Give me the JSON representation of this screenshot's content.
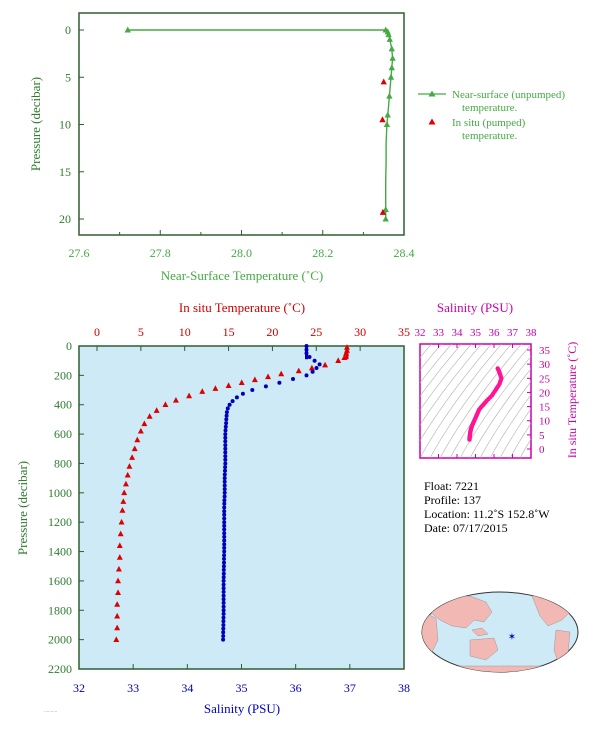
{
  "chart_data": [
    {
      "type": "line",
      "xlabel": "Near-Surface Temperature (˚C)",
      "ylabel": "Pressure (decibar)",
      "xlim": [
        27.6,
        28.4
      ],
      "ylim": [
        0,
        22
      ],
      "x_ticks": [
        "27.6",
        "27.8",
        "28.0",
        "28.2",
        "28.4"
      ],
      "y_ticks": [
        "0",
        "5",
        "10",
        "15",
        "20"
      ],
      "legend_placement": "right",
      "series": [
        {
          "name": "Near-surface (unpumped) temperature.",
          "color": "#44aa44",
          "marker": "triangle",
          "points": [
            [
              27.72,
              0
            ],
            [
              28.355,
              0
            ],
            [
              28.36,
              0.2
            ],
            [
              28.362,
              0.5
            ],
            [
              28.365,
              1
            ],
            [
              28.37,
              2
            ],
            [
              28.372,
              3
            ],
            [
              28.37,
              4
            ],
            [
              28.368,
              5
            ],
            [
              28.366,
              6
            ],
            [
              28.364,
              7
            ],
            [
              28.362,
              8
            ],
            [
              28.36,
              9
            ],
            [
              28.358,
              10
            ],
            [
              28.357,
              11
            ],
            [
              28.356,
              12
            ],
            [
              28.356,
              14
            ],
            [
              28.355,
              16
            ],
            [
              28.355,
              18
            ],
            [
              28.355,
              19
            ],
            [
              28.355,
              20
            ]
          ],
          "marker_points": [
            [
              27.72,
              0
            ],
            [
              28.355,
              0
            ],
            [
              28.36,
              0.2
            ],
            [
              28.362,
              0.5
            ],
            [
              28.365,
              1
            ],
            [
              28.37,
              2
            ],
            [
              28.372,
              3
            ],
            [
              28.37,
              4
            ],
            [
              28.368,
              5
            ],
            [
              28.364,
              7
            ],
            [
              28.36,
              9
            ],
            [
              28.358,
              10
            ],
            [
              28.355,
              19
            ],
            [
              28.355,
              20
            ]
          ]
        },
        {
          "name": "In situ (pumped) temperature.",
          "color": "#dd0000",
          "marker": "triangle",
          "points": [
            [
              28.355,
              5.5
            ],
            [
              28.352,
              9.5
            ],
            [
              28.353,
              19.3
            ]
          ]
        }
      ]
    },
    {
      "type": "line",
      "top_xlabel": "In situ Temperature (˚C)",
      "bottom_xlabel": "Salinity (PSU)",
      "ylabel": "Pressure (decibar)",
      "temperature_lim": [
        0,
        35
      ],
      "salinity_lim": [
        32,
        38
      ],
      "ylim": [
        0,
        2200
      ],
      "temperature_ticks": [
        "0",
        "5",
        "10",
        "15",
        "20",
        "25",
        "30",
        "35"
      ],
      "salinity_ticks": [
        "32",
        "33",
        "34",
        "35",
        "36",
        "37",
        "38"
      ],
      "y_ticks": [
        "0",
        "200",
        "400",
        "600",
        "800",
        "1000",
        "1200",
        "1400",
        "1600",
        "1800",
        "2000",
        "2200"
      ],
      "series": [
        {
          "name": "In situ Temperature",
          "color": "#dd0000",
          "marker": "triangle",
          "x": [
            28.5,
            28.5,
            28.4,
            28.2,
            27.5,
            26.0,
            24.5,
            23.0,
            21.0,
            19.5,
            18.0,
            16.5,
            15.0,
            13.5,
            12.0,
            10.5,
            9.0,
            7.8,
            6.8,
            6.0,
            5.4,
            5.0,
            4.6,
            4.3,
            4.0,
            3.7,
            3.5,
            3.3,
            3.1,
            3.0,
            2.9,
            2.8,
            2.7,
            2.6,
            2.6,
            2.5,
            2.4,
            2.4,
            2.3,
            2.3,
            2.3,
            2.2
          ],
          "y": [
            10,
            30,
            50,
            80,
            100,
            130,
            150,
            170,
            190,
            210,
            230,
            250,
            270,
            290,
            310,
            340,
            370,
            400,
            440,
            480,
            530,
            580,
            640,
            700,
            760,
            820,
            880,
            940,
            1000,
            1060,
            1120,
            1200,
            1280,
            1360,
            1440,
            1520,
            1600,
            1680,
            1760,
            1840,
            1920,
            2000
          ]
        },
        {
          "name": "Salinity",
          "color": "#0000bb",
          "marker": "dot",
          "x": [
            36.2,
            36.2,
            36.2,
            36.2,
            36.35,
            36.45,
            36.42,
            36.35,
            36.3,
            36.2,
            36.0,
            35.8,
            35.6,
            35.4,
            35.2,
            35.05,
            34.95,
            34.88,
            34.82,
            34.78,
            34.75,
            34.73,
            34.72,
            34.71,
            34.7,
            34.7,
            34.7,
            34.69,
            34.69,
            34.68,
            34.68,
            34.68,
            34.67,
            34.67,
            34.67,
            34.66
          ],
          "y": [
            0,
            20,
            40,
            60,
            100,
            120,
            140,
            160,
            180,
            200,
            220,
            240,
            260,
            280,
            300,
            320,
            340,
            360,
            380,
            400,
            420,
            450,
            500,
            550,
            600,
            700,
            800,
            900,
            1000,
            1100,
            1200,
            1400,
            1600,
            1700,
            1800,
            2000
          ]
        }
      ]
    },
    {
      "type": "scatter",
      "title": "Salinity (PSU)",
      "ylabel": "In situ Temperature (˚C)",
      "xlim": [
        32,
        38
      ],
      "ylim": [
        0,
        35
      ],
      "x_ticks": [
        "32",
        "33",
        "34",
        "35",
        "36",
        "37",
        "38"
      ],
      "y_ticks": [
        "0",
        "5",
        "10",
        "15",
        "20",
        "25",
        "30",
        "35"
      ],
      "series": [
        {
          "name": "T-S",
          "color": "#ff1493",
          "points": [
            [
              36.2,
              28.5
            ],
            [
              36.3,
              27
            ],
            [
              36.4,
              25
            ],
            [
              36.3,
              23
            ],
            [
              36.1,
              21
            ],
            [
              35.9,
              19
            ],
            [
              35.6,
              17
            ],
            [
              35.4,
              15.5
            ],
            [
              35.2,
              14
            ],
            [
              35.1,
              12.5
            ],
            [
              35.0,
              11
            ],
            [
              34.9,
              9.5
            ],
            [
              34.8,
              8
            ],
            [
              34.75,
              7
            ],
            [
              34.72,
              6
            ],
            [
              34.7,
              5
            ],
            [
              34.68,
              4
            ],
            [
              34.67,
              3
            ]
          ]
        }
      ]
    }
  ],
  "info": {
    "float": "Float:  7221",
    "profile": "Profile:  137",
    "location": "Location:  11.2˚S  152.8˚W",
    "date": "Date:  07/17/2015"
  },
  "colors": {
    "panel_bg": "#cdeaf6",
    "ocean": "#cfeaf7",
    "land": "#f2b8b4",
    "axis": "#2f5f2f"
  }
}
